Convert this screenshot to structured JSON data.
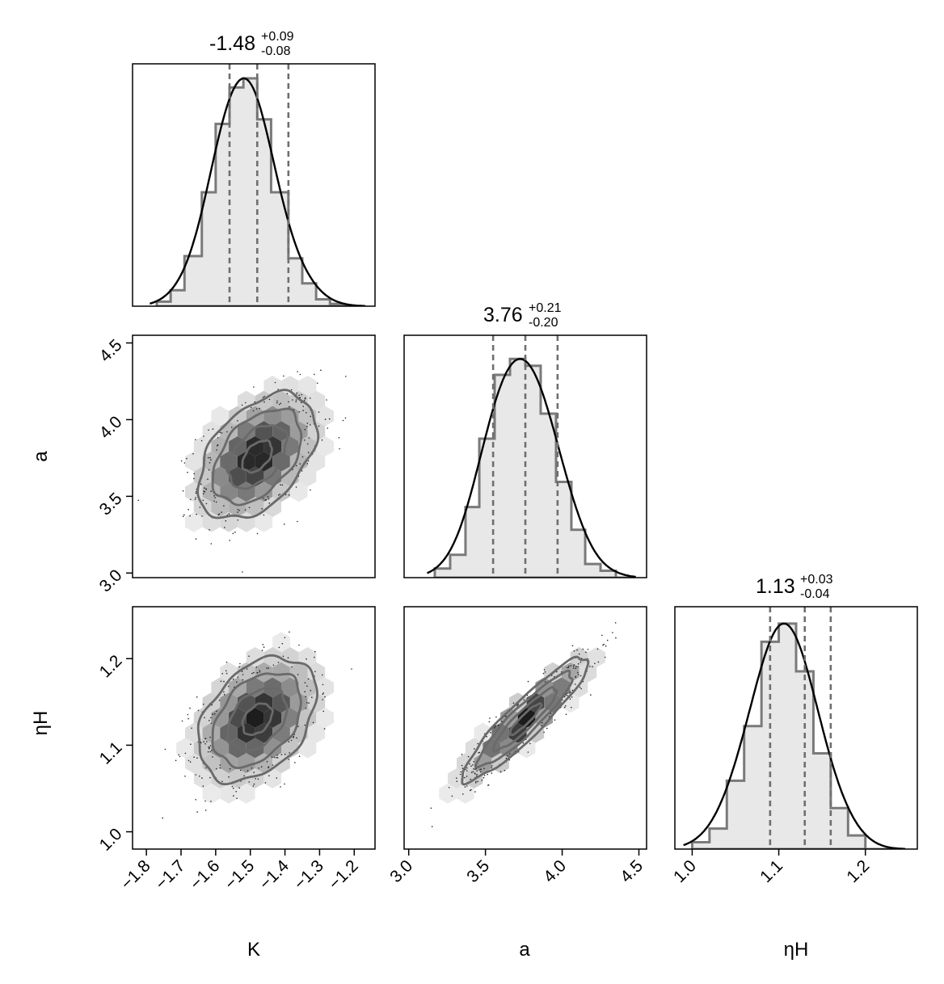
{
  "chart_data": {
    "type": "corner",
    "parameters": [
      {
        "name": "K",
        "label": "K",
        "median": -1.48,
        "title": {
          "main": "-1.48",
          "plus": "+0.09",
          "minus": "-0.08"
        },
        "quantiles": [
          -1.56,
          -1.48,
          -1.39
        ],
        "range": [
          -1.84,
          -1.14
        ],
        "ticks": [
          -1.8,
          -1.7,
          -1.6,
          -1.5,
          -1.4,
          -1.3,
          -1.2
        ],
        "tick_labels": [
          "−1.8",
          "−1.7",
          "−1.6",
          "−1.5",
          "−1.4",
          "−1.3",
          "−1.2"
        ],
        "hist": {
          "edges": [
            -1.77,
            -1.73,
            -1.69,
            -1.64,
            -1.6,
            -1.56,
            -1.52,
            -1.48,
            -1.44,
            -1.39,
            -1.35,
            -1.31,
            -1.27,
            -1.23,
            -1.18
          ],
          "counts": [
            0.02,
            0.07,
            0.22,
            0.5,
            0.8,
            0.96,
            1.0,
            0.82,
            0.5,
            0.21,
            0.1,
            0.03,
            0.01,
            0.0
          ]
        }
      },
      {
        "name": "a",
        "label": "a",
        "median": 3.76,
        "title": {
          "main": "3.76",
          "plus": "+0.21",
          "minus": "-0.20"
        },
        "quantiles": [
          3.55,
          3.76,
          3.97
        ],
        "range": [
          2.97,
          4.55
        ],
        "ticks": [
          3.0,
          3.5,
          4.0,
          4.5
        ],
        "tick_labels": [
          "3.0",
          "3.5",
          "4.0",
          "4.5"
        ],
        "hist": {
          "edges": [
            3.17,
            3.27,
            3.37,
            3.46,
            3.56,
            3.66,
            3.76,
            3.86,
            3.96,
            4.06,
            4.15,
            4.25,
            4.35,
            4.45
          ],
          "counts": [
            0.04,
            0.1,
            0.31,
            0.61,
            0.89,
            0.96,
            0.93,
            0.72,
            0.42,
            0.21,
            0.06,
            0.03,
            0.0
          ]
        }
      },
      {
        "name": "etaH",
        "label": "ηH",
        "median": 1.13,
        "title": {
          "main": "1.13",
          "plus": "+0.03",
          "minus": "-0.04"
        },
        "quantiles": [
          1.09,
          1.13,
          1.16
        ],
        "range": [
          0.98,
          1.26
        ],
        "ticks": [
          1.0,
          1.1,
          1.2
        ],
        "tick_labels": [
          "1.0",
          "1.1",
          "1.2"
        ],
        "hist": {
          "edges": [
            1.0,
            1.02,
            1.04,
            1.06,
            1.08,
            1.1,
            1.12,
            1.14,
            1.16,
            1.18,
            1.2,
            1.22,
            1.24
          ],
          "counts": [
            0.03,
            0.09,
            0.3,
            0.54,
            0.91,
            0.99,
            0.78,
            0.42,
            0.18,
            0.06,
            0.0,
            0.0
          ]
        }
      }
    ],
    "pairs": [
      {
        "x": "K",
        "y": "a",
        "center": [
          -1.48,
          3.76
        ],
        "sigma": [
          0.085,
          0.205
        ],
        "corr": 0.45
      },
      {
        "x": "K",
        "y": "etaH",
        "center": [
          -1.48,
          1.13
        ],
        "sigma": [
          0.085,
          0.036
        ],
        "corr": 0.38
      },
      {
        "x": "a",
        "y": "etaH",
        "center": [
          3.76,
          1.13
        ],
        "sigma": [
          0.205,
          0.036
        ],
        "corr": 0.92
      }
    ],
    "contour_levels_sigma": [
      0.5,
      1.0,
      1.5,
      2.0
    ]
  }
}
